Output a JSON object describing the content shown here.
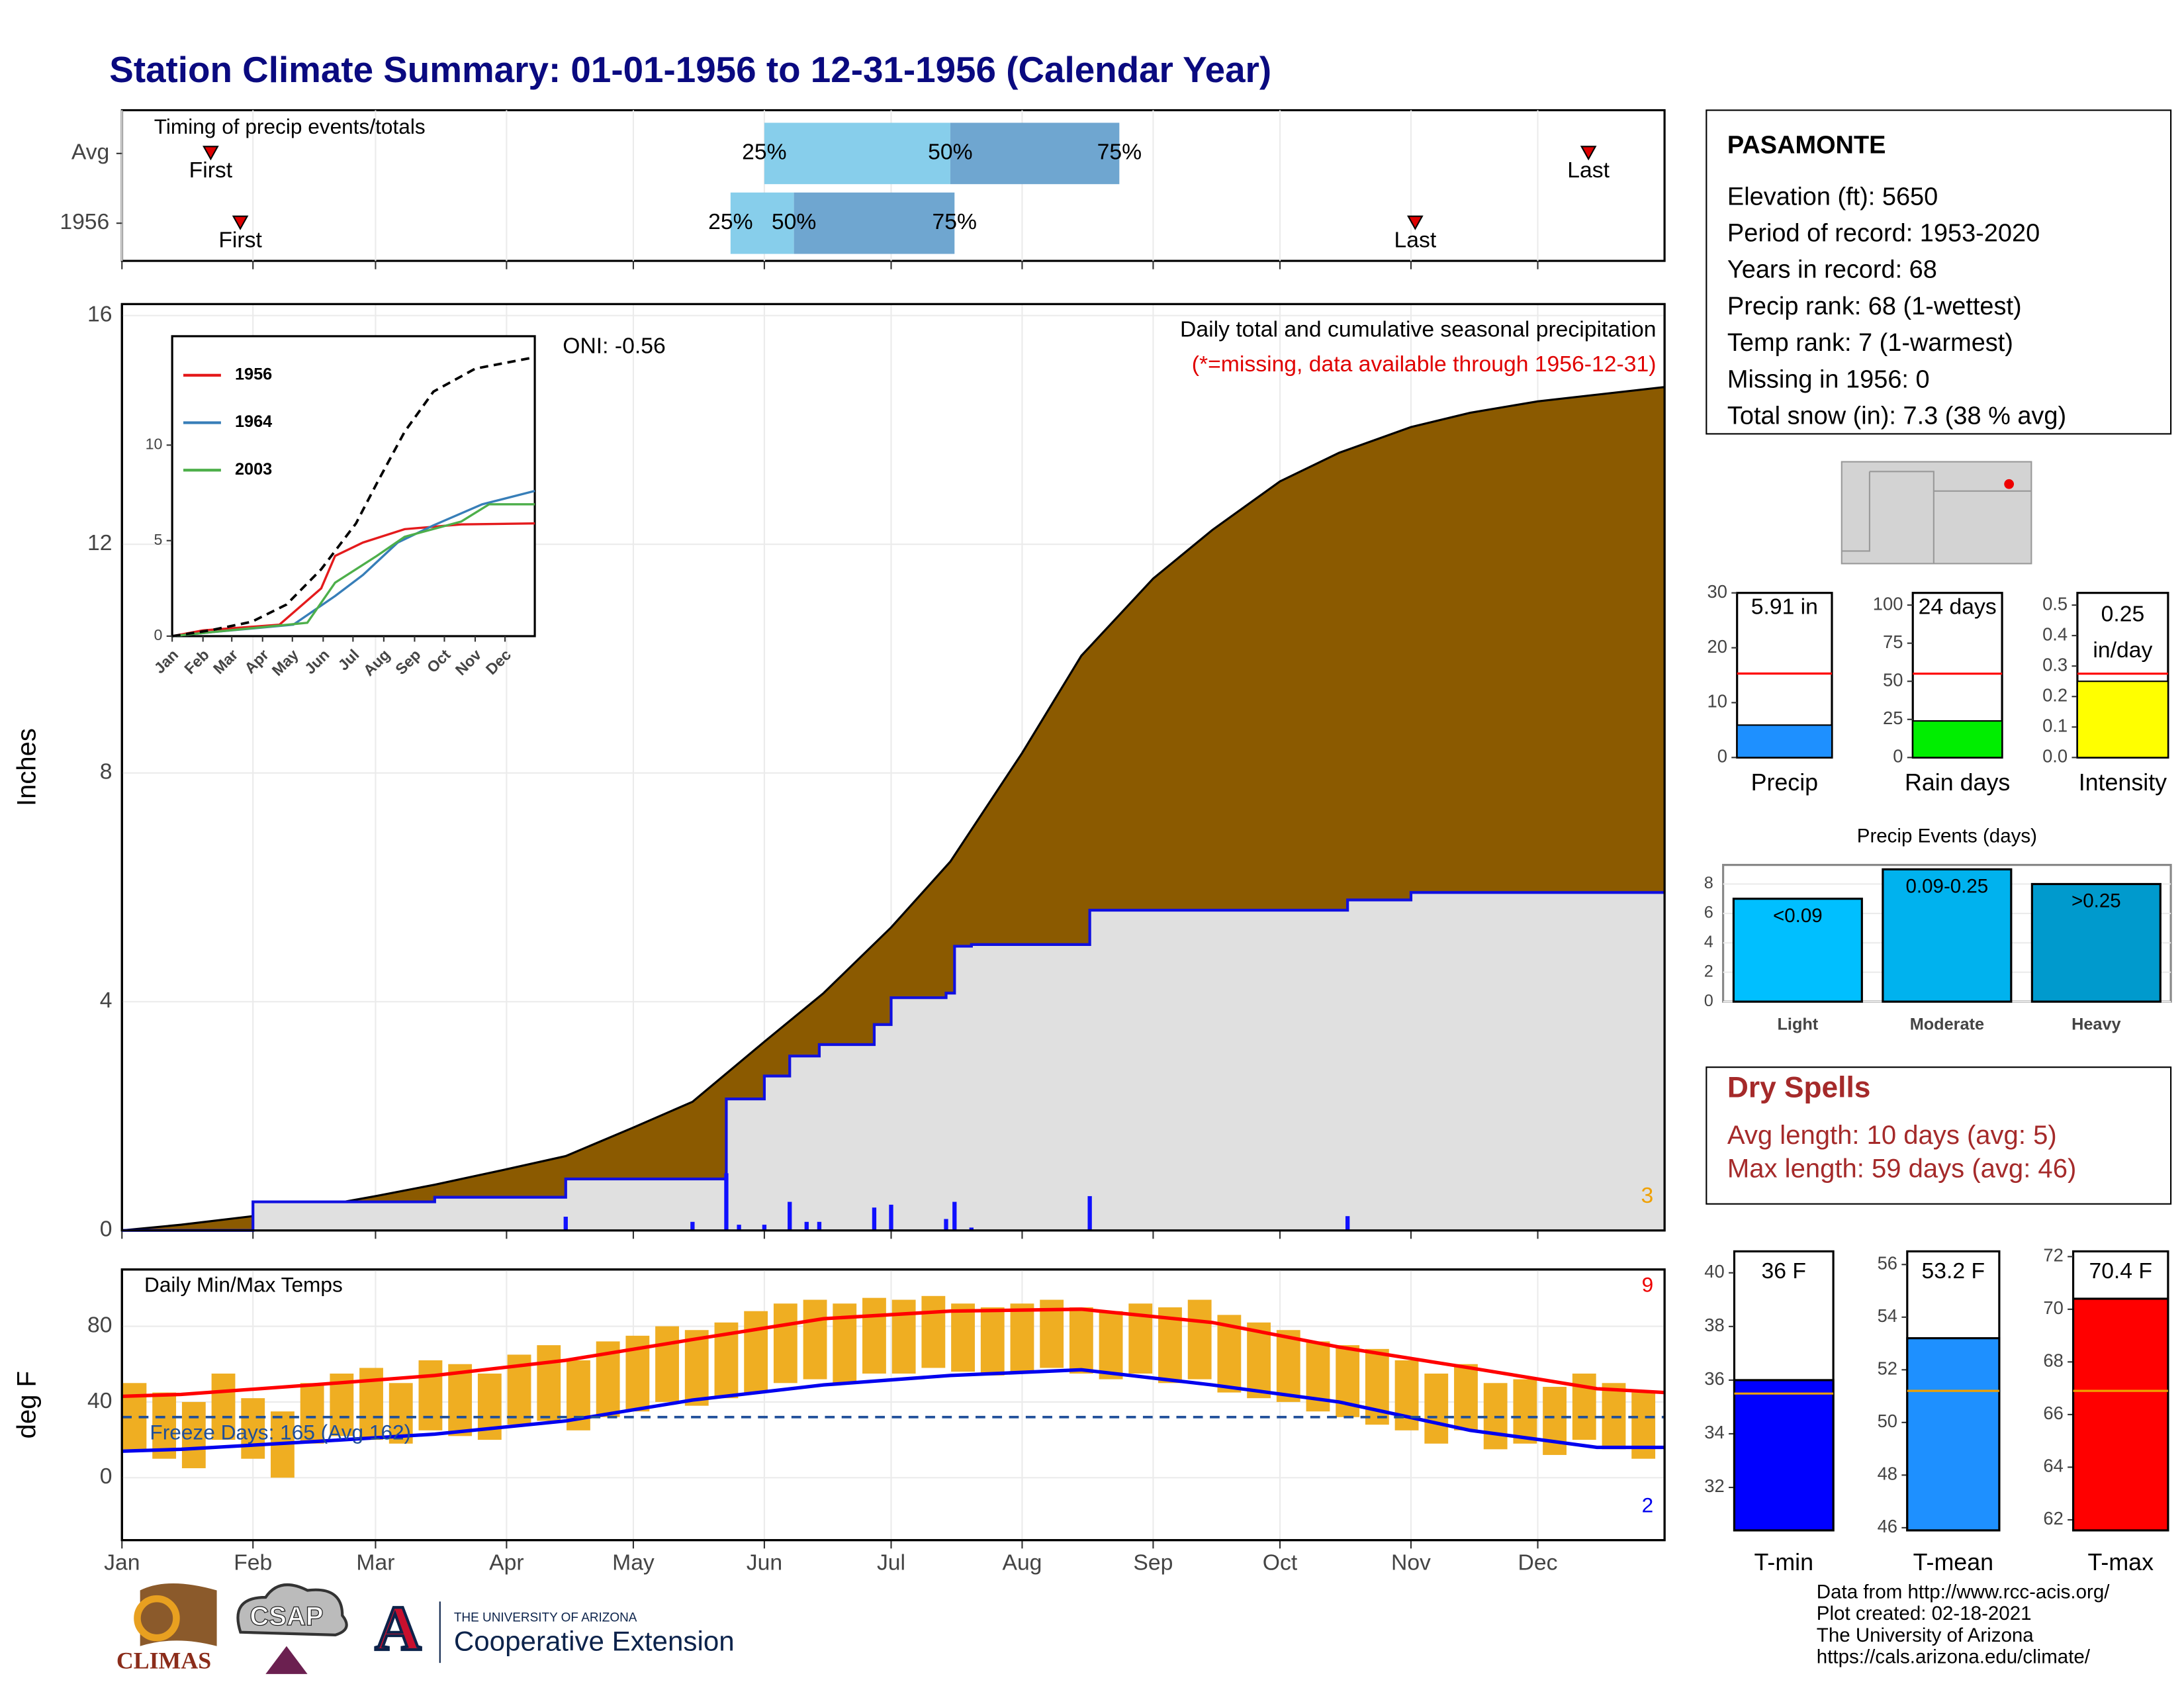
{
  "title": "Station Climate Summary: 01-01-1956 to 12-31-1956 (Calendar Year)",
  "chart_data": [
    {
      "type": "timeline",
      "title": "Timing of precip events/totals",
      "xlim": [
        1,
        366
      ],
      "labels": {
        "first": "First",
        "last": "Last",
        "p25": "25%",
        "p50": "50%",
        "p75": "75%"
      },
      "rows": [
        {
          "name": "Avg",
          "first": 22,
          "last": 348,
          "p25": 153,
          "p50": 197,
          "p75": 237
        },
        {
          "name": "1956",
          "first": 29,
          "last": 307,
          "p25": 145,
          "p50": 160,
          "p75": 198
        }
      ],
      "colors": {
        "low": "#87ceeb",
        "high": "#6fa6d0",
        "marker": "#dd0000"
      }
    },
    {
      "type": "area",
      "ylabel": "Inches",
      "subtitle": "Daily total and cumulative seasonal precipitation",
      "note": "(*=missing, data available through 1956-12-31)",
      "oni": "ONI: -0.56",
      "corner_count": 3,
      "xlim": [
        1,
        366
      ],
      "ylim": [
        0,
        16.2
      ],
      "yticks": [
        0,
        4,
        8,
        12,
        16
      ],
      "grid": true,
      "avg": {
        "color": "#8b5a00",
        "x": [
          1,
          15,
          32,
          46,
          61,
          75,
          92,
          106,
          122,
          136,
          153,
          167,
          183,
          197,
          214,
          228,
          245,
          259,
          275,
          289,
          306,
          320,
          336,
          366
        ],
        "values": [
          0,
          0.1,
          0.25,
          0.4,
          0.6,
          0.8,
          1.07,
          1.3,
          1.8,
          2.25,
          3.3,
          4.15,
          5.3,
          6.45,
          8.35,
          10.05,
          11.4,
          12.25,
          13.1,
          13.6,
          14.05,
          14.3,
          14.5,
          14.75
        ]
      },
      "year": {
        "color": "#1010e0",
        "fill": "#e0e0e0",
        "x": [
          1,
          32,
          32,
          75,
          75,
          106,
          106,
          144,
          144,
          153,
          153,
          159,
          159,
          166,
          166,
          179,
          179,
          183,
          183,
          196,
          196,
          198,
          198,
          202,
          202,
          230,
          230,
          291,
          291,
          306,
          306,
          366
        ],
        "values": [
          0,
          0,
          0.5,
          0.5,
          0.58,
          0.58,
          0.9,
          0.9,
          2.3,
          2.3,
          2.7,
          2.7,
          3.05,
          3.05,
          3.25,
          3.25,
          3.6,
          3.6,
          4.07,
          4.07,
          4.15,
          4.15,
          4.97,
          4.97,
          5.0,
          5.0,
          5.6,
          5.6,
          5.78,
          5.78,
          5.91,
          5.91
        ]
      },
      "daily": {
        "color": "#1010ff",
        "x": [
          106,
          136,
          144,
          147,
          153,
          159,
          163,
          166,
          179,
          183,
          196,
          198,
          202,
          230,
          291
        ],
        "values": [
          0.24,
          0.15,
          1.0,
          0.1,
          0.1,
          0.5,
          0.15,
          0.15,
          0.4,
          0.45,
          0.2,
          0.5,
          0.05,
          0.6,
          0.25
        ]
      }
    },
    {
      "type": "line",
      "xlim": [
        1,
        366
      ],
      "ylim": [
        0,
        15.7
      ],
      "yticks": [
        0,
        5,
        10
      ],
      "xticks": [
        {
          "value": 1,
          "label": "Jan"
        },
        {
          "value": 32,
          "label": "Feb"
        },
        {
          "value": 61,
          "label": "Mar"
        },
        {
          "value": 92,
          "label": "Apr"
        },
        {
          "value": 122,
          "label": "May"
        },
        {
          "value": 153,
          "label": "Jun"
        },
        {
          "value": 183,
          "label": "Jul"
        },
        {
          "value": 214,
          "label": "Aug"
        },
        {
          "value": 245,
          "label": "Sep"
        },
        {
          "value": 275,
          "label": "Oct"
        },
        {
          "value": 306,
          "label": "Nov"
        },
        {
          "value": 336,
          "label": "Dec"
        }
      ],
      "average": {
        "color": "#000000",
        "x": [
          1,
          39,
          81,
          116,
          151,
          186,
          207,
          235,
          264,
          306,
          366
        ],
        "values": [
          0,
          0.3,
          0.75,
          1.65,
          3.5,
          5.9,
          8.0,
          10.7,
          12.8,
          14.0,
          14.6
        ]
      },
      "series": [
        {
          "name": "1956",
          "color": "#e41a1c",
          "x": [
            1,
            32,
            109,
            151,
            165,
            193,
            235,
            292,
            366
          ],
          "values": [
            0,
            0.3,
            0.6,
            2.5,
            4.2,
            4.9,
            5.6,
            5.85,
            5.9
          ]
        },
        {
          "name": "1964",
          "color": "#377eb8",
          "x": [
            1,
            39,
            123,
            165,
            193,
            228,
            264,
            313,
            366
          ],
          "values": [
            0,
            0.2,
            0.6,
            2.1,
            3.2,
            4.9,
            5.8,
            6.9,
            7.6
          ]
        },
        {
          "name": "2003",
          "color": "#4daf4a",
          "x": [
            1,
            39,
            137,
            165,
            207,
            235,
            292,
            320,
            366
          ],
          "values": [
            0,
            0.2,
            0.7,
            2.8,
            4.2,
            5.2,
            6.0,
            6.9,
            6.9
          ]
        }
      ]
    },
    {
      "type": "range-bar",
      "title": "Daily Min/Max Temps",
      "ylabel": "deg F",
      "freeze_label": "Freeze Days: 165 (Avg 162)",
      "freeze_line": 32,
      "record_high_count": 9,
      "record_low_count": 2,
      "xlim": [
        1,
        366
      ],
      "ylim": [
        -33,
        110
      ],
      "yticks": [
        0,
        40,
        80
      ],
      "grid": true,
      "xticks": [
        {
          "value": 1,
          "label": "Jan"
        },
        {
          "value": 32,
          "label": "Feb"
        },
        {
          "value": 61,
          "label": "Mar"
        },
        {
          "value": 92,
          "label": "Apr"
        },
        {
          "value": 122,
          "label": "May"
        },
        {
          "value": 153,
          "label": "Jun"
        },
        {
          "value": 183,
          "label": "Jul"
        },
        {
          "value": 214,
          "label": "Aug"
        },
        {
          "value": 245,
          "label": "Sep"
        },
        {
          "value": 275,
          "label": "Oct"
        },
        {
          "value": 306,
          "label": "Nov"
        },
        {
          "value": 336,
          "label": "Dec"
        }
      ],
      "bar_color": "#efae22",
      "bars": {
        "x": [
          4,
          11,
          18,
          25,
          32,
          39,
          46,
          53,
          60,
          67,
          74,
          81,
          88,
          95,
          102,
          109,
          116,
          123,
          130,
          137,
          144,
          151,
          158,
          165,
          172,
          179,
          186,
          193,
          200,
          207,
          214,
          221,
          228,
          235,
          242,
          249,
          256,
          263,
          270,
          277,
          284,
          291,
          298,
          305,
          312,
          319,
          326,
          333,
          340,
          347,
          354,
          361
        ],
        "max": [
          50,
          45,
          40,
          55,
          42,
          35,
          50,
          55,
          58,
          50,
          62,
          60,
          55,
          65,
          70,
          62,
          72,
          75,
          80,
          78,
          82,
          88,
          92,
          94,
          92,
          95,
          94,
          96,
          92,
          90,
          92,
          94,
          90,
          88,
          92,
          90,
          94,
          86,
          82,
          78,
          72,
          70,
          68,
          62,
          55,
          60,
          50,
          52,
          48,
          55,
          50,
          45
        ],
        "min": [
          15,
          10,
          5,
          20,
          10,
          0,
          18,
          22,
          20,
          18,
          25,
          22,
          20,
          28,
          30,
          25,
          32,
          35,
          40,
          38,
          42,
          45,
          50,
          52,
          50,
          55,
          55,
          58,
          56,
          54,
          56,
          58,
          55,
          52,
          55,
          50,
          52,
          45,
          42,
          40,
          35,
          32,
          28,
          25,
          18,
          25,
          15,
          18,
          12,
          20,
          15,
          10
        ]
      },
      "avg_max": {
        "color": "#ff0000",
        "x": [
          1,
          15,
          46,
          75,
          106,
          136,
          167,
          197,
          228,
          259,
          289,
          320,
          350,
          366
        ],
        "values": [
          43,
          44,
          49,
          54,
          62,
          73,
          84,
          88,
          89,
          82,
          69,
          58,
          47,
          45
        ]
      },
      "avg_min": {
        "color": "#0000ee",
        "x": [
          1,
          15,
          46,
          75,
          106,
          136,
          167,
          197,
          228,
          259,
          289,
          320,
          350,
          366
        ],
        "values": [
          14,
          15,
          19,
          23,
          30,
          41,
          49,
          54,
          57,
          49,
          40,
          25,
          16,
          16
        ]
      }
    },
    {
      "type": "mini-bar",
      "label": "Precip",
      "value": 5.91,
      "value_label": [
        "5.91 in"
      ],
      "avg": 15.3,
      "ylim": [
        0,
        30
      ],
      "yticks": [
        0,
        10,
        20,
        30
      ],
      "color": "#1e90ff"
    },
    {
      "type": "mini-bar",
      "label": "Rain days",
      "value": 24,
      "value_label": [
        "24 days"
      ],
      "avg": 55,
      "ylim": [
        0,
        108
      ],
      "yticks": [
        0,
        25,
        50,
        75,
        100
      ],
      "color": "#00ee00"
    },
    {
      "type": "mini-bar",
      "label": "Intensity",
      "value": 0.25,
      "value_label": [
        "0.25",
        "in/day"
      ],
      "avg": 0.275,
      "ylim": [
        0,
        0.54
      ],
      "yticks": [
        {
          "value": 0,
          "label": "0.0"
        },
        0.1,
        0.2,
        0.3,
        0.4,
        0.5
      ],
      "color": "#ffff00"
    },
    {
      "type": "bar",
      "title": "Precip Events (days)",
      "categories": [
        "Light",
        "Moderate",
        "Heavy"
      ],
      "values": [
        7,
        9,
        8
      ],
      "value_labels": [
        "<0.09",
        "0.09-0.25",
        ">0.25"
      ],
      "colors": [
        "#00bfff",
        "#00b2ee",
        "#009acd"
      ],
      "ylim": [
        0,
        9.3
      ],
      "yticks": [
        0,
        2,
        4,
        6,
        8
      ],
      "grid": true
    },
    {
      "type": "temp-bar",
      "label": "T-min",
      "value": 36,
      "value_label": "36 F",
      "avg": 35.5,
      "ylim": [
        30.4,
        40.8
      ],
      "yticks": [
        32,
        34,
        36,
        38,
        40
      ],
      "color": "#0000ff"
    },
    {
      "type": "temp-bar",
      "label": "T-mean",
      "value": 53.2,
      "value_label": "53.2 F",
      "avg": 51.2,
      "ylim": [
        45.9,
        56.5
      ],
      "yticks": [
        46,
        48,
        50,
        52,
        54,
        56
      ],
      "color": "#1e90ff"
    },
    {
      "type": "temp-bar",
      "label": "T-max",
      "value": 70.4,
      "value_label": "70.4 F",
      "avg": 66.9,
      "ylim": [
        61.6,
        72.2
      ],
      "yticks": [
        62,
        64,
        66,
        68,
        70,
        72
      ],
      "color": "#ff0000"
    }
  ],
  "station": {
    "name": "PASAMONTE",
    "lines": [
      "Elevation (ft): 5650",
      "Period of record: 1953-2020",
      "Years in record: 68",
      "Precip rank: 68 (1-wettest)",
      "Temp rank: 7 (1-warmest)",
      "Missing in 1956: 0",
      "Total snow (in): 7.3 (38 % avg)"
    ]
  },
  "dry_spells": {
    "title": "Dry Spells",
    "lines": [
      "Avg length: 10 days (avg: 5)",
      "Max length: 59 days (avg: 46)"
    ]
  },
  "credits": [
    "Data from http://www.rcc-acis.org/",
    "Plot created: 02-18-2021",
    "The University of Arizona",
    "https://cals.arizona.edu/climate/"
  ],
  "logos": {
    "climas": "CLIMAS",
    "csap": "CSAP",
    "university": "THE UNIVERSITY OF ARIZONA",
    "extension": "Cooperative Extension"
  }
}
